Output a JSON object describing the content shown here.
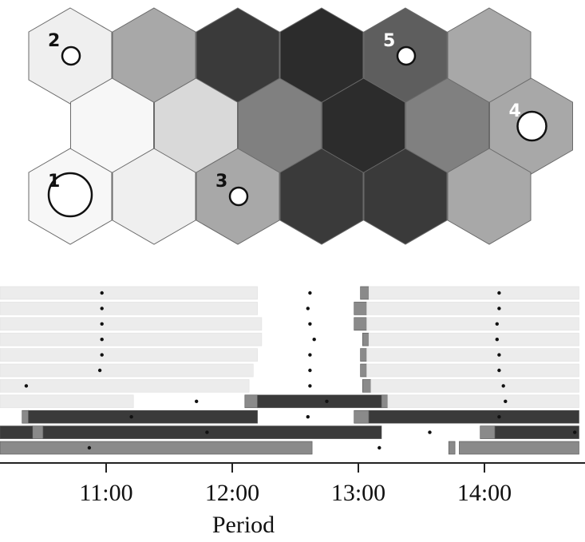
{
  "chart_data": [
    {
      "type": "heatmap",
      "layout": "hexagonal",
      "grid": {
        "rows": 3,
        "cols": 6
      },
      "colors": {
        "white": "#f7f7f7",
        "very_light": "#efefef",
        "light": "#d9d9d9",
        "mid_light": "#a8a8a8",
        "mid": "#808080",
        "dark_mid": "#5e5e5e",
        "dark": "#3a3a3a",
        "darkest": "#2c2c2c"
      },
      "cells": [
        {
          "row": 0,
          "col": 0,
          "shade": "very_light"
        },
        {
          "row": 0,
          "col": 1,
          "shade": "mid_light"
        },
        {
          "row": 0,
          "col": 2,
          "shade": "dark"
        },
        {
          "row": 0,
          "col": 3,
          "shade": "darkest"
        },
        {
          "row": 0,
          "col": 4,
          "shade": "dark_mid"
        },
        {
          "row": 0,
          "col": 5,
          "shade": "mid_light"
        },
        {
          "row": 1,
          "col": 0,
          "shade": "white"
        },
        {
          "row": 1,
          "col": 1,
          "shade": "light"
        },
        {
          "row": 1,
          "col": 2,
          "shade": "mid"
        },
        {
          "row": 1,
          "col": 3,
          "shade": "darkest"
        },
        {
          "row": 1,
          "col": 4,
          "shade": "mid"
        },
        {
          "row": 1,
          "col": 5,
          "shade": "mid_light"
        },
        {
          "row": 2,
          "col": 0,
          "shade": "white"
        },
        {
          "row": 2,
          "col": 1,
          "shade": "very_light"
        },
        {
          "row": 2,
          "col": 2,
          "shade": "mid_light"
        },
        {
          "row": 2,
          "col": 3,
          "shade": "dark"
        },
        {
          "row": 2,
          "col": 4,
          "shade": "dark"
        },
        {
          "row": 2,
          "col": 5,
          "shade": "mid_light"
        }
      ],
      "markers": [
        {
          "label": "1",
          "row": 2,
          "col": 0,
          "size": "large",
          "label_color": "#111111"
        },
        {
          "label": "2",
          "row": 0,
          "col": 0,
          "size": "small",
          "label_color": "#111111"
        },
        {
          "label": "3",
          "row": 2,
          "col": 2,
          "size": "small",
          "label_color": "#111111"
        },
        {
          "label": "4",
          "row": 1,
          "col": 5,
          "size": "medium",
          "label_color": "#ffffff"
        },
        {
          "label": "5",
          "row": 0,
          "col": 4,
          "size": "small",
          "label_color": "#ffffff"
        }
      ]
    },
    {
      "type": "bar",
      "orientation": "horizontal-timeline",
      "x_axis": {
        "ticks": [
          "11:00",
          "12:00",
          "13:00",
          "14:00"
        ],
        "range": [
          "10:20",
          "14:45"
        ],
        "title": "Period"
      },
      "colors": {
        "light": "#ececec",
        "mid": "#8a8a8a",
        "dark": "#3a3a3a",
        "gap_block": "#9a9a9a"
      },
      "rows": [
        {
          "segments": [
            {
              "start": "10:00",
              "end": "12:12",
              "shade": "light"
            },
            {
              "start": "13:01",
              "end": "13:05",
              "shade": "mid"
            },
            {
              "start": "13:05",
              "end": "14:45",
              "shade": "light"
            }
          ]
        },
        {
          "segments": [
            {
              "start": "10:00",
              "end": "12:12",
              "shade": "light"
            },
            {
              "start": "12:58",
              "end": "13:04",
              "shade": "mid"
            },
            {
              "start": "13:04",
              "end": "14:45",
              "shade": "light"
            }
          ]
        },
        {
          "segments": [
            {
              "start": "10:00",
              "end": "12:14",
              "shade": "light"
            },
            {
              "start": "12:58",
              "end": "13:04",
              "shade": "mid"
            },
            {
              "start": "13:04",
              "end": "14:45",
              "shade": "light"
            }
          ]
        },
        {
          "segments": [
            {
              "start": "10:00",
              "end": "12:14",
              "shade": "light"
            },
            {
              "start": "13:02",
              "end": "13:05",
              "shade": "mid"
            },
            {
              "start": "13:05",
              "end": "14:45",
              "shade": "light"
            }
          ]
        },
        {
          "segments": [
            {
              "start": "10:00",
              "end": "12:12",
              "shade": "light"
            },
            {
              "start": "13:01",
              "end": "13:04",
              "shade": "mid"
            },
            {
              "start": "13:04",
              "end": "14:45",
              "shade": "light"
            }
          ]
        },
        {
          "segments": [
            {
              "start": "10:00",
              "end": "12:10",
              "shade": "light"
            },
            {
              "start": "13:01",
              "end": "13:04",
              "shade": "mid"
            },
            {
              "start": "13:04",
              "end": "14:45",
              "shade": "light"
            }
          ]
        },
        {
          "segments": [
            {
              "start": "10:00",
              "end": "12:08",
              "shade": "light"
            },
            {
              "start": "13:02",
              "end": "13:06",
              "shade": "mid"
            },
            {
              "start": "13:06",
              "end": "14:45",
              "shade": "light"
            }
          ]
        },
        {
          "segments": [
            {
              "start": "10:00",
              "end": "11:13",
              "shade": "light"
            },
            {
              "start": "12:06",
              "end": "12:12",
              "shade": "mid"
            },
            {
              "start": "12:12",
              "end": "13:11",
              "shade": "dark"
            },
            {
              "start": "13:11",
              "end": "13:14",
              "shade": "mid"
            },
            {
              "start": "13:14",
              "end": "14:45",
              "shade": "light"
            }
          ]
        },
        {
          "segments": [
            {
              "start": "10:20",
              "end": "10:23",
              "shade": "mid"
            },
            {
              "start": "10:23",
              "end": "12:12",
              "shade": "dark"
            },
            {
              "start": "12:58",
              "end": "13:05",
              "shade": "mid"
            },
            {
              "start": "13:05",
              "end": "14:45",
              "shade": "dark"
            }
          ]
        },
        {
          "segments": [
            {
              "start": "10:00",
              "end": "10:25",
              "shade": "dark"
            },
            {
              "start": "10:25",
              "end": "10:30",
              "shade": "mid"
            },
            {
              "start": "10:30",
              "end": "13:11",
              "shade": "dark"
            },
            {
              "start": "13:58",
              "end": "14:05",
              "shade": "mid"
            },
            {
              "start": "14:05",
              "end": "14:45",
              "shade": "dark"
            }
          ]
        },
        {
          "segments": [
            {
              "start": "10:00",
              "end": "12:38",
              "shade": "mid"
            },
            {
              "start": "13:43",
              "end": "13:46",
              "shade": "mid"
            },
            {
              "start": "13:48",
              "end": "14:45",
              "shade": "mid"
            }
          ]
        }
      ],
      "dots": [
        {
          "row": 0,
          "times": [
            "10:58",
            "12:37",
            "14:07"
          ]
        },
        {
          "row": 1,
          "times": [
            "10:58",
            "12:36",
            "14:07"
          ]
        },
        {
          "row": 2,
          "times": [
            "10:58",
            "12:37",
            "14:06"
          ]
        },
        {
          "row": 3,
          "times": [
            "10:58",
            "12:39",
            "14:06"
          ]
        },
        {
          "row": 4,
          "times": [
            "10:58",
            "12:37",
            "14:07"
          ]
        },
        {
          "row": 5,
          "times": [
            "10:57",
            "12:37",
            "14:07"
          ]
        },
        {
          "row": 6,
          "times": [
            "10:22",
            "12:37",
            "14:09"
          ]
        },
        {
          "row": 7,
          "times": [
            "11:43",
            "12:45",
            "14:10"
          ]
        },
        {
          "row": 8,
          "times": [
            "11:12",
            "12:36",
            "14:07"
          ]
        },
        {
          "row": 9,
          "times": [
            "11:48",
            "13:34",
            "14:43"
          ]
        },
        {
          "row": 10,
          "times": [
            "10:52",
            "13:10"
          ]
        }
      ]
    }
  ]
}
